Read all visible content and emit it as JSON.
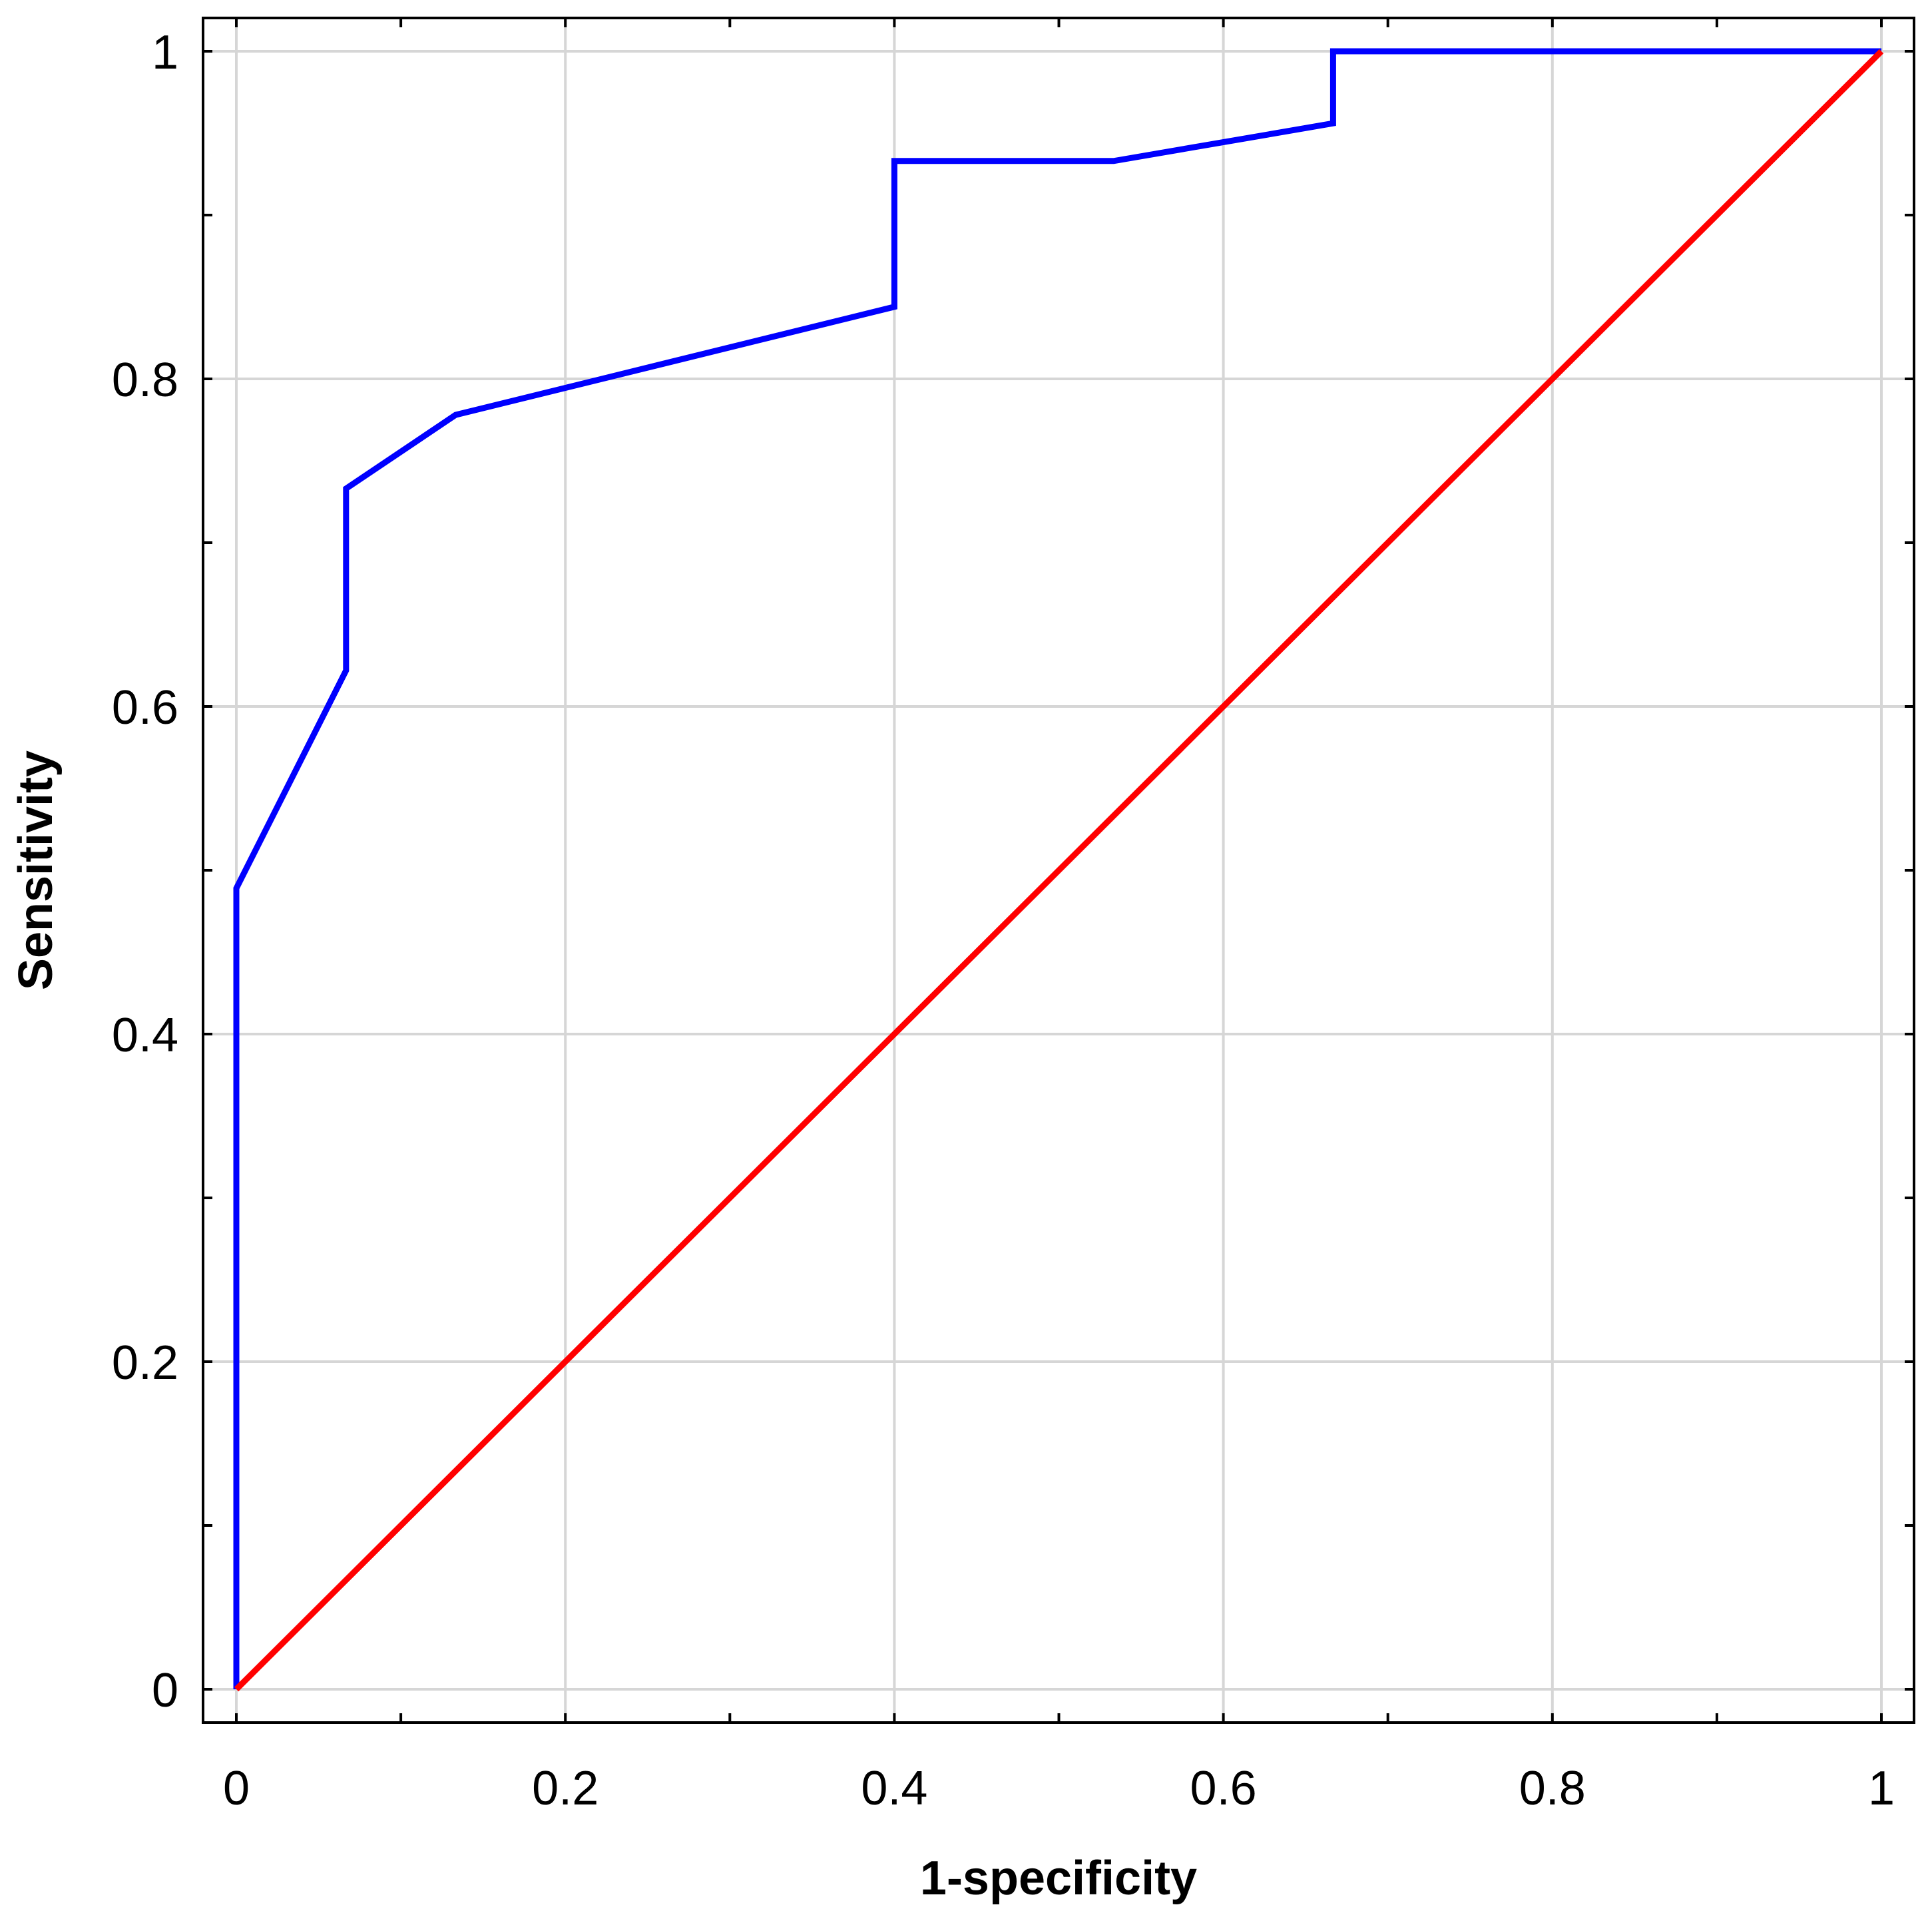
{
  "chart_data": {
    "type": "line",
    "xlabel": "1-specificity",
    "ylabel": "Sensitivity",
    "xlim": [
      0,
      1
    ],
    "ylim": [
      0,
      1
    ],
    "x_ticks": [
      "0",
      "0.2",
      "0.4",
      "0.6",
      "0.8",
      "1"
    ],
    "y_ticks": [
      "0",
      "0.2",
      "0.4",
      "0.6",
      "0.8",
      "1"
    ],
    "x_tick_values": [
      0,
      0.2,
      0.4,
      0.6,
      0.8,
      1
    ],
    "y_tick_values": [
      0,
      0.2,
      0.4,
      0.6,
      0.8,
      1
    ],
    "minor_tick_step": 0.1,
    "grid": true,
    "series": [
      {
        "color": "#0000ff",
        "x": [
          0,
          0,
          0.0667,
          0.0667,
          0.1333,
          0.4,
          0.4,
          0.5333,
          0.6667,
          0.6667,
          1
        ],
        "y": [
          0,
          0.489,
          0.622,
          0.733,
          0.778,
          0.844,
          0.933,
          0.933,
          0.956,
          1,
          1
        ]
      },
      {
        "color": "#ff0000",
        "x": [
          0,
          1
        ],
        "y": [
          0,
          1
        ]
      }
    ]
  }
}
